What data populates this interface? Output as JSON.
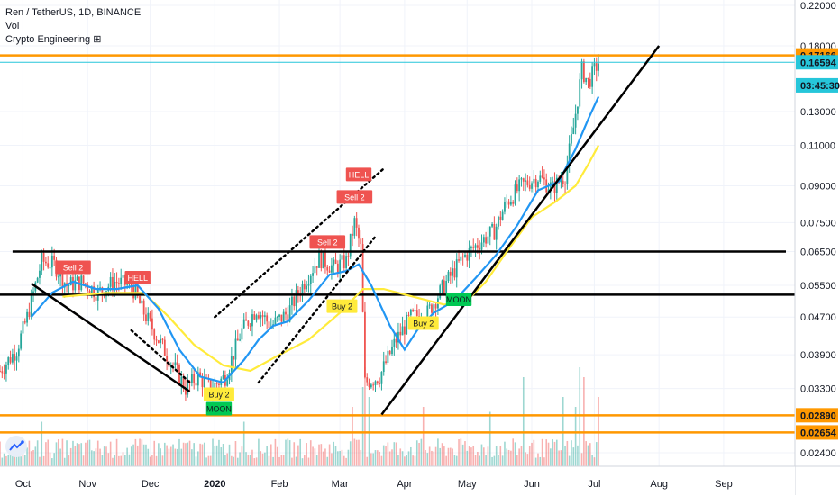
{
  "header": {
    "symbol_line": "Ren / TetherUS, 1D, BINANCE",
    "volume_label": "Vol",
    "indicator_label": "Crypto Engineering ⊞"
  },
  "colors": {
    "up": "#26a69a",
    "down": "#ef5350",
    "fast_ma": "#2196f3",
    "slow_ma": "#ffeb3b",
    "horizontal_line": "#ff9800",
    "current_price_line": "#26c6da",
    "trendline": "#000000",
    "signal_sell": "#ef5350",
    "signal_buy": "#ffeb3b",
    "signal_moon": "#00c853"
  },
  "chart_data": {
    "type": "candlestick",
    "title": "Ren / TetherUS, 1D, BINANCE",
    "price_axis": {
      "position": "right",
      "ticks": [
        0.024,
        0.0265,
        0.0289,
        0.033,
        0.039,
        0.047,
        0.055,
        0.065,
        0.075,
        0.09,
        0.11,
        0.13,
        0.18,
        0.22
      ],
      "tick_labels": [
        "0.02400",
        "0.02654",
        "0.02890",
        "0.03300",
        "0.03900",
        "0.04700",
        "0.05500",
        "0.06500",
        "0.07500",
        "0.09000",
        "0.11000",
        "0.13000",
        "0.18000",
        "0.22000"
      ],
      "highlighted": [
        {
          "label": "0.17166",
          "value": 0.17166,
          "color": "#ff9800"
        },
        {
          "label": "0.16594",
          "value": 0.16594,
          "color": "#26c6da"
        },
        {
          "label": "03:45:30",
          "value": 0.148,
          "color": "#26c6da"
        },
        {
          "label": "0.02890",
          "value": 0.0289,
          "color": "#ff9800"
        },
        {
          "label": "0.02654",
          "value": 0.02654,
          "color": "#ff9800"
        }
      ],
      "scale": "log"
    },
    "time_axis": {
      "labels": [
        "Oct",
        "Nov",
        "Dec",
        "2020",
        "Feb",
        "Mar",
        "Apr",
        "May",
        "Jun",
        "Jul",
        "Aug",
        "Sep"
      ],
      "month_starts": [
        "2019-10-01",
        "2019-11-01",
        "2019-12-01",
        "2020-01-01",
        "2020-02-01",
        "2020-03-01",
        "2020-04-01",
        "2020-05-01",
        "2020-06-01",
        "2020-07-01",
        "2020-08-01",
        "2020-09-01"
      ],
      "range": [
        "2019-09-20",
        "2020-09-30"
      ]
    },
    "anchors": [
      [
        "2019-09-20",
        0.036
      ],
      [
        "2019-09-28",
        0.04
      ],
      [
        "2019-10-03",
        0.047
      ],
      [
        "2019-10-10",
        0.062
      ],
      [
        "2019-10-16",
        0.061
      ],
      [
        "2019-10-22",
        0.055
      ],
      [
        "2019-10-29",
        0.056
      ],
      [
        "2019-11-06",
        0.053
      ],
      [
        "2019-11-14",
        0.056
      ],
      [
        "2019-11-22",
        0.055
      ],
      [
        "2019-11-27",
        0.049
      ],
      [
        "2019-12-05",
        0.042
      ],
      [
        "2019-12-12",
        0.037
      ],
      [
        "2019-12-18",
        0.033
      ],
      [
        "2019-12-24",
        0.035
      ],
      [
        "2019-12-30",
        0.033
      ],
      [
        "2020-01-06",
        0.035
      ],
      [
        "2020-01-14",
        0.044
      ],
      [
        "2020-01-21",
        0.049
      ],
      [
        "2020-01-28",
        0.045
      ],
      [
        "2020-02-05",
        0.048
      ],
      [
        "2020-02-13",
        0.056
      ],
      [
        "2020-02-20",
        0.063
      ],
      [
        "2020-02-27",
        0.06
      ],
      [
        "2020-03-04",
        0.062
      ],
      [
        "2020-03-08",
        0.075
      ],
      [
        "2020-03-11",
        0.066
      ],
      [
        "2020-03-13",
        0.034
      ],
      [
        "2020-03-20",
        0.035
      ],
      [
        "2020-03-28",
        0.042
      ],
      [
        "2020-04-04",
        0.047
      ],
      [
        "2020-04-12",
        0.048
      ],
      [
        "2020-04-20",
        0.055
      ],
      [
        "2020-04-29",
        0.063
      ],
      [
        "2020-05-07",
        0.068
      ],
      [
        "2020-05-14",
        0.072
      ],
      [
        "2020-05-20",
        0.083
      ],
      [
        "2020-05-27",
        0.09
      ],
      [
        "2020-06-04",
        0.094
      ],
      [
        "2020-06-11",
        0.089
      ],
      [
        "2020-06-17",
        0.095
      ],
      [
        "2020-06-21",
        0.12
      ],
      [
        "2020-06-25",
        0.16
      ],
      [
        "2020-06-28",
        0.15
      ],
      [
        "2020-07-03",
        0.166
      ]
    ],
    "volume_spikes": [
      [
        "2020-03-13",
        1.0
      ],
      [
        "2020-03-12",
        0.8
      ],
      [
        "2020-03-07",
        0.6
      ],
      [
        "2020-03-15",
        0.7
      ],
      [
        "2020-05-28",
        0.9
      ],
      [
        "2020-06-24",
        1.0
      ],
      [
        "2020-06-26",
        0.9
      ],
      [
        "2020-06-22",
        0.6
      ],
      [
        "2020-06-16",
        0.7
      ],
      [
        "2020-04-10",
        0.6
      ],
      [
        "2020-05-12",
        0.55
      ],
      [
        "2020-07-03",
        0.7
      ],
      [
        "2020-01-15",
        0.45
      ],
      [
        "2019-10-10",
        0.45
      ]
    ],
    "fast_ma": [
      [
        "2019-10-05",
        0.047
      ],
      [
        "2019-10-15",
        0.053
      ],
      [
        "2019-10-25",
        0.056
      ],
      [
        "2019-11-05",
        0.054
      ],
      [
        "2019-11-15",
        0.054
      ],
      [
        "2019-11-25",
        0.055
      ],
      [
        "2019-12-05",
        0.049
      ],
      [
        "2019-12-15",
        0.04
      ],
      [
        "2019-12-25",
        0.035
      ],
      [
        "2020-01-05",
        0.034
      ],
      [
        "2020-01-15",
        0.038
      ],
      [
        "2020-01-22",
        0.042
      ],
      [
        "2020-01-29",
        0.045
      ],
      [
        "2020-02-05",
        0.046
      ],
      [
        "2020-02-15",
        0.051
      ],
      [
        "2020-02-25",
        0.058
      ],
      [
        "2020-03-04",
        0.059
      ],
      [
        "2020-03-10",
        0.061
      ],
      [
        "2020-03-16",
        0.055
      ],
      [
        "2020-03-25",
        0.045
      ],
      [
        "2020-04-01",
        0.04
      ],
      [
        "2020-04-07",
        0.044
      ],
      [
        "2020-04-15",
        0.048
      ],
      [
        "2020-04-25",
        0.051
      ],
      [
        "2020-05-05",
        0.057
      ],
      [
        "2020-05-15",
        0.064
      ],
      [
        "2020-05-25",
        0.074
      ],
      [
        "2020-06-04",
        0.088
      ],
      [
        "2020-06-14",
        0.092
      ],
      [
        "2020-06-22",
        0.108
      ],
      [
        "2020-06-28",
        0.125
      ],
      [
        "2020-07-03",
        0.14
      ]
    ],
    "slow_ma": [
      [
        "2019-10-20",
        0.052
      ],
      [
        "2019-11-10",
        0.053
      ],
      [
        "2019-11-28",
        0.053
      ],
      [
        "2019-12-10",
        0.047
      ],
      [
        "2019-12-22",
        0.041
      ],
      [
        "2020-01-05",
        0.037
      ],
      [
        "2020-01-18",
        0.036
      ],
      [
        "2020-02-01",
        0.039
      ],
      [
        "2020-02-15",
        0.042
      ],
      [
        "2020-03-01",
        0.048
      ],
      [
        "2020-03-12",
        0.054
      ],
      [
        "2020-03-22",
        0.054
      ],
      [
        "2020-04-05",
        0.052
      ],
      [
        "2020-04-20",
        0.05
      ],
      [
        "2020-05-01",
        0.051
      ],
      [
        "2020-05-10",
        0.056
      ],
      [
        "2020-05-20",
        0.065
      ],
      [
        "2020-06-01",
        0.077
      ],
      [
        "2020-06-12",
        0.083
      ],
      [
        "2020-06-22",
        0.09
      ],
      [
        "2020-06-28",
        0.1
      ],
      [
        "2020-07-03",
        0.11
      ]
    ],
    "horizontal_lines": [
      {
        "value": 0.17166,
        "color": "#ff9800"
      },
      {
        "value": 0.0289,
        "color": "#ff9800"
      },
      {
        "value": 0.02654,
        "color": "#ff9800"
      },
      {
        "value": 0.065,
        "color": "#000000"
      },
      {
        "value": 0.0525,
        "color": "#000000"
      }
    ],
    "trendlines": [
      {
        "from": [
          "2019-10-05",
          0.0555
        ],
        "to": [
          "2019-12-20",
          0.0325
        ],
        "style": "solid"
      },
      {
        "from": [
          "2020-03-21",
          0.029
        ],
        "to": [
          "2020-08-01",
          0.18
        ],
        "style": "solid"
      },
      {
        "from": [
          "2019-11-22",
          0.044
        ],
        "to": [
          "2019-12-20",
          0.034
        ],
        "style": "dotted"
      },
      {
        "from": [
          "2020-01-01",
          0.047
        ],
        "to": [
          "2020-03-22",
          0.098
        ],
        "style": "dotted"
      },
      {
        "from": [
          "2020-01-22",
          0.034
        ],
        "to": [
          "2020-03-18",
          0.07
        ],
        "style": "dotted"
      }
    ],
    "signals": [
      {
        "label": "Sell 2",
        "date": "2019-10-25",
        "value": 0.06,
        "kind": "sell"
      },
      {
        "label": "HELL",
        "date": "2019-11-25",
        "value": 0.057,
        "kind": "sell"
      },
      {
        "label": "Sell 2",
        "date": "2020-02-24",
        "value": 0.068,
        "kind": "sell"
      },
      {
        "label": "HELL",
        "date": "2020-03-10",
        "value": 0.095,
        "kind": "sell"
      },
      {
        "label": "Sell 2",
        "date": "2020-03-08",
        "value": 0.085,
        "kind": "sell"
      },
      {
        "label": "Buy 2",
        "date": "2020-03-02",
        "value": 0.0495,
        "kind": "buy"
      },
      {
        "label": "Buy 2",
        "date": "2020-04-10",
        "value": 0.0455,
        "kind": "buy"
      },
      {
        "label": "Buy 2",
        "date": "2020-01-03",
        "value": 0.032,
        "kind": "buy"
      },
      {
        "label": "MOON",
        "date": "2020-01-03",
        "value": 0.0298,
        "kind": "moon"
      },
      {
        "label": "MOON",
        "date": "2020-04-27",
        "value": 0.0512,
        "kind": "moon"
      }
    ]
  }
}
